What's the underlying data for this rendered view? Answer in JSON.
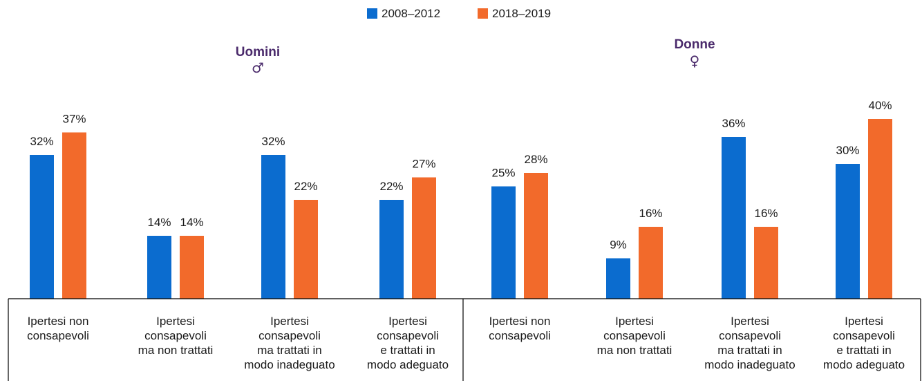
{
  "colors": {
    "series_a": "#0b6ccf",
    "series_b": "#f26a2b",
    "panel_title": "#4a2a6b",
    "axis": "#000000"
  },
  "chart_data": {
    "type": "bar",
    "legend_position": "top-center",
    "ylim": [
      0,
      45
    ],
    "grid": false,
    "series": [
      {
        "name": "2008–2012",
        "color": "#0b6ccf"
      },
      {
        "name": "2018–2019",
        "color": "#f26a2b"
      }
    ],
    "panels": [
      {
        "title": "Uomini",
        "symbol": "♂",
        "categories": [
          {
            "lines": [
              "Ipertesi non",
              "consapevoli"
            ],
            "values": [
              32,
              37
            ],
            "labels": [
              "32%",
              "37%"
            ]
          },
          {
            "lines": [
              "Ipertesi",
              "consapevoli",
              "ma non trattati"
            ],
            "values": [
              14,
              14
            ],
            "labels": [
              "14%",
              "14%"
            ]
          },
          {
            "lines": [
              "Ipertesi",
              "consapevoli",
              "ma trattati in",
              "modo inadeguato"
            ],
            "values": [
              32,
              22
            ],
            "labels": [
              "32%",
              "22%"
            ]
          },
          {
            "lines": [
              "Ipertesi",
              "consapevoli",
              "e trattati in",
              "modo adeguato"
            ],
            "values": [
              22,
              27
            ],
            "labels": [
              "22%",
              "27%"
            ]
          }
        ]
      },
      {
        "title": "Donne",
        "symbol": "♀",
        "categories": [
          {
            "lines": [
              "Ipertesi non",
              "consapevoli"
            ],
            "values": [
              25,
              28
            ],
            "labels": [
              "25%",
              "28%"
            ]
          },
          {
            "lines": [
              "Ipertesi",
              "consapevoli",
              "ma non trattati"
            ],
            "values": [
              9,
              16
            ],
            "labels": [
              "9%",
              "16%"
            ]
          },
          {
            "lines": [
              "Ipertesi",
              "consapevoli",
              "ma trattati in",
              "modo inadeguato"
            ],
            "values": [
              36,
              16
            ],
            "labels": [
              "36%",
              "16%"
            ]
          },
          {
            "lines": [
              "Ipertesi",
              "consapevoli",
              "e trattati in",
              "modo adeguato"
            ],
            "values": [
              30,
              40
            ],
            "labels": [
              "30%",
              "40%"
            ]
          }
        ]
      }
    ]
  }
}
